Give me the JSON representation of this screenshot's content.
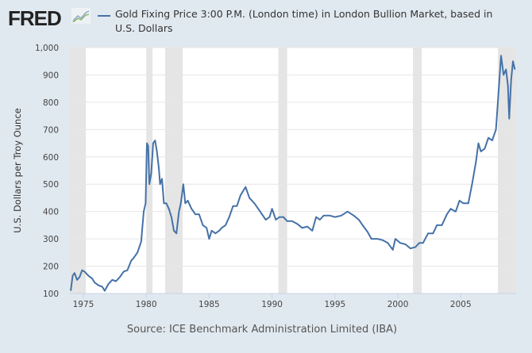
{
  "header": {
    "logo": "FRED",
    "legend_label": "Gold Fixing Price 3:00 P.M. (London time) in London Bullion Market, based in U.S. Dollars"
  },
  "colors": {
    "series": "#4572a7",
    "recession": "#e5e5e5",
    "background": "#e1e9f0"
  },
  "chart_data": {
    "type": "line",
    "title": "",
    "xlabel": "",
    "ylabel": "U.S. Dollars per Troy Ounce",
    "source": "Source: ICE Benchmark Administration Limited (IBA)",
    "xlim": [
      1973.93,
      2009.4
    ],
    "ylim": [
      100,
      1000
    ],
    "yticks": [
      100,
      200,
      300,
      400,
      500,
      600,
      700,
      800,
      900,
      1000
    ],
    "ytick_labels": [
      "100",
      "200",
      "300",
      "400",
      "500",
      "600",
      "700",
      "800",
      "900",
      "1,000"
    ],
    "xticks": [
      1975,
      1980,
      1985,
      1990,
      1995,
      2000,
      2005
    ],
    "xtick_labels": [
      "1975",
      "1980",
      "1985",
      "1990",
      "1995",
      "2000",
      "2005"
    ],
    "grid": true,
    "recessions": [
      [
        1973.93,
        1975.2
      ],
      [
        1980.0,
        1980.5
      ],
      [
        1981.5,
        1982.9
      ],
      [
        1990.5,
        1991.2
      ],
      [
        2001.2,
        2001.9
      ],
      [
        2007.95,
        2009.4
      ]
    ],
    "series": [
      {
        "name": "Gold Fixing Price 3:00 P.M. (London time) in London Bullion Market, based in U.S. Dollars",
        "points": [
          [
            1974.0,
            110
          ],
          [
            1974.15,
            165
          ],
          [
            1974.3,
            175
          ],
          [
            1974.5,
            150
          ],
          [
            1974.7,
            160
          ],
          [
            1974.9,
            185
          ],
          [
            1975.1,
            180
          ],
          [
            1975.4,
            165
          ],
          [
            1975.7,
            155
          ],
          [
            1975.9,
            140
          ],
          [
            1976.2,
            130
          ],
          [
            1976.5,
            125
          ],
          [
            1976.7,
            110
          ],
          [
            1977.0,
            135
          ],
          [
            1977.3,
            150
          ],
          [
            1977.6,
            145
          ],
          [
            1977.9,
            160
          ],
          [
            1978.2,
            180
          ],
          [
            1978.5,
            185
          ],
          [
            1978.8,
            220
          ],
          [
            1979.0,
            230
          ],
          [
            1979.3,
            250
          ],
          [
            1979.6,
            290
          ],
          [
            1979.8,
            400
          ],
          [
            1979.95,
            430
          ],
          [
            1980.05,
            650
          ],
          [
            1980.15,
            640
          ],
          [
            1980.25,
            500
          ],
          [
            1980.4,
            540
          ],
          [
            1980.55,
            650
          ],
          [
            1980.7,
            660
          ],
          [
            1980.85,
            620
          ],
          [
            1981.0,
            560
          ],
          [
            1981.1,
            500
          ],
          [
            1981.25,
            520
          ],
          [
            1981.4,
            430
          ],
          [
            1981.6,
            430
          ],
          [
            1981.8,
            410
          ],
          [
            1982.0,
            380
          ],
          [
            1982.2,
            330
          ],
          [
            1982.4,
            320
          ],
          [
            1982.6,
            400
          ],
          [
            1982.75,
            430
          ],
          [
            1982.95,
            500
          ],
          [
            1983.1,
            430
          ],
          [
            1983.3,
            440
          ],
          [
            1983.6,
            410
          ],
          [
            1983.9,
            390
          ],
          [
            1984.2,
            390
          ],
          [
            1984.5,
            350
          ],
          [
            1984.8,
            340
          ],
          [
            1985.0,
            300
          ],
          [
            1985.2,
            330
          ],
          [
            1985.5,
            320
          ],
          [
            1985.8,
            330
          ],
          [
            1986.0,
            340
          ],
          [
            1986.3,
            350
          ],
          [
            1986.6,
            380
          ],
          [
            1986.9,
            420
          ],
          [
            1987.2,
            420
          ],
          [
            1987.5,
            460
          ],
          [
            1987.9,
            490
          ],
          [
            1988.2,
            450
          ],
          [
            1988.6,
            430
          ],
          [
            1988.9,
            410
          ],
          [
            1989.2,
            390
          ],
          [
            1989.5,
            370
          ],
          [
            1989.8,
            380
          ],
          [
            1990.0,
            410
          ],
          [
            1990.3,
            370
          ],
          [
            1990.6,
            380
          ],
          [
            1990.9,
            380
          ],
          [
            1991.2,
            365
          ],
          [
            1991.6,
            365
          ],
          [
            1992.0,
            355
          ],
          [
            1992.4,
            340
          ],
          [
            1992.8,
            345
          ],
          [
            1993.2,
            330
          ],
          [
            1993.5,
            380
          ],
          [
            1993.8,
            370
          ],
          [
            1994.1,
            385
          ],
          [
            1994.6,
            385
          ],
          [
            1995.0,
            380
          ],
          [
            1995.5,
            385
          ],
          [
            1996.0,
            400
          ],
          [
            1996.5,
            385
          ],
          [
            1996.9,
            370
          ],
          [
            1997.2,
            350
          ],
          [
            1997.6,
            325
          ],
          [
            1997.9,
            300
          ],
          [
            1998.4,
            300
          ],
          [
            1998.8,
            295
          ],
          [
            1999.2,
            285
          ],
          [
            1999.6,
            260
          ],
          [
            1999.8,
            300
          ],
          [
            2000.2,
            285
          ],
          [
            2000.6,
            280
          ],
          [
            2001.0,
            265
          ],
          [
            2001.4,
            270
          ],
          [
            2001.7,
            285
          ],
          [
            2002.0,
            285
          ],
          [
            2002.4,
            320
          ],
          [
            2002.8,
            320
          ],
          [
            2003.1,
            350
          ],
          [
            2003.5,
            350
          ],
          [
            2003.9,
            390
          ],
          [
            2004.2,
            410
          ],
          [
            2004.6,
            400
          ],
          [
            2004.9,
            440
          ],
          [
            2005.2,
            430
          ],
          [
            2005.6,
            430
          ],
          [
            2005.9,
            500
          ],
          [
            2006.2,
            580
          ],
          [
            2006.4,
            650
          ],
          [
            2006.6,
            620
          ],
          [
            2006.9,
            630
          ],
          [
            2007.2,
            670
          ],
          [
            2007.5,
            660
          ],
          [
            2007.8,
            700
          ],
          [
            2007.95,
            800
          ],
          [
            2008.2,
            970
          ],
          [
            2008.4,
            900
          ],
          [
            2008.6,
            920
          ],
          [
            2008.75,
            860
          ],
          [
            2008.85,
            740
          ],
          [
            2009.0,
            880
          ],
          [
            2009.15,
            950
          ],
          [
            2009.3,
            920
          ]
        ]
      }
    ]
  }
}
